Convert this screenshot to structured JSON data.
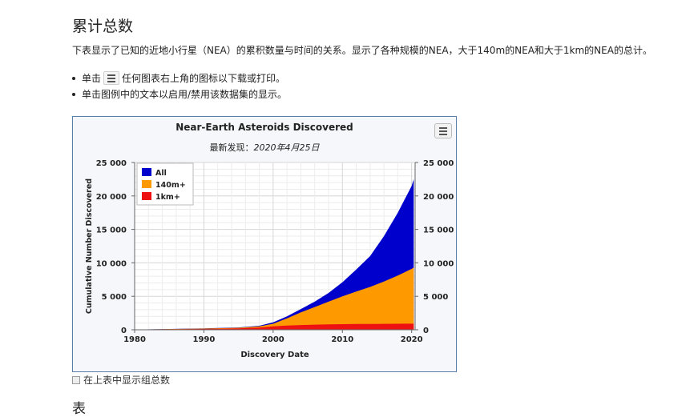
{
  "page": {
    "title": "累计总数",
    "description": "下表显示了已知的近地小行星（NEA）的累积数量与时间的关系。显示了各种规模的NEA，大于140m的NEA和大于1km的NEA的总计。",
    "bullet1_before": "单击",
    "bullet1_after": "任何图表右上角的图标以下载或打印。",
    "bullet2": "单击图例中的文本以启用/禁用该数据集的显示。",
    "checkbox_label": "在上表中显示组总数",
    "table_heading": "表"
  },
  "chart_data": {
    "type": "area",
    "title": "Near-Earth Asteroids Discovered",
    "subtitle_label": "最新发现：",
    "subtitle_date": "2020年4月25日",
    "xlabel": "Discovery Date",
    "ylabel": "Cumulative Number Discovered",
    "xlim": [
      1980,
      2020.5
    ],
    "ylim": [
      0,
      25000
    ],
    "x_ticks": [
      "1980",
      "1990",
      "2000",
      "2010",
      "2020"
    ],
    "y_ticks_left": [
      "25 000",
      "20 000",
      "15 000",
      "10 000",
      "5 000",
      "0"
    ],
    "y_ticks_right": [
      "25 000",
      "20 000",
      "15 000",
      "10 000",
      "5 000",
      "0"
    ],
    "grid": true,
    "legend_position": "top-left",
    "x": [
      1980,
      1990,
      1995,
      1998,
      2000,
      2002,
      2004,
      2006,
      2008,
      2010,
      2012,
      2014,
      2016,
      2018,
      2019,
      2020,
      2020.3
    ],
    "series": [
      {
        "name": "All",
        "color": "#0000cc",
        "values": [
          30,
          200,
          350,
          600,
          1100,
          2000,
          3100,
          4200,
          5500,
          7100,
          9000,
          11000,
          14000,
          17500,
          19500,
          21500,
          22500
        ]
      },
      {
        "name": "140m+",
        "color": "#ff9900",
        "values": [
          30,
          180,
          300,
          500,
          900,
          1700,
          2600,
          3400,
          4200,
          5000,
          5700,
          6400,
          7200,
          8100,
          8600,
          9100,
          9300
        ]
      },
      {
        "name": "1km+",
        "color": "#ee1111",
        "values": [
          20,
          120,
          200,
          320,
          500,
          630,
          700,
          760,
          810,
          840,
          860,
          875,
          890,
          900,
          905,
          910,
          912
        ]
      }
    ]
  }
}
